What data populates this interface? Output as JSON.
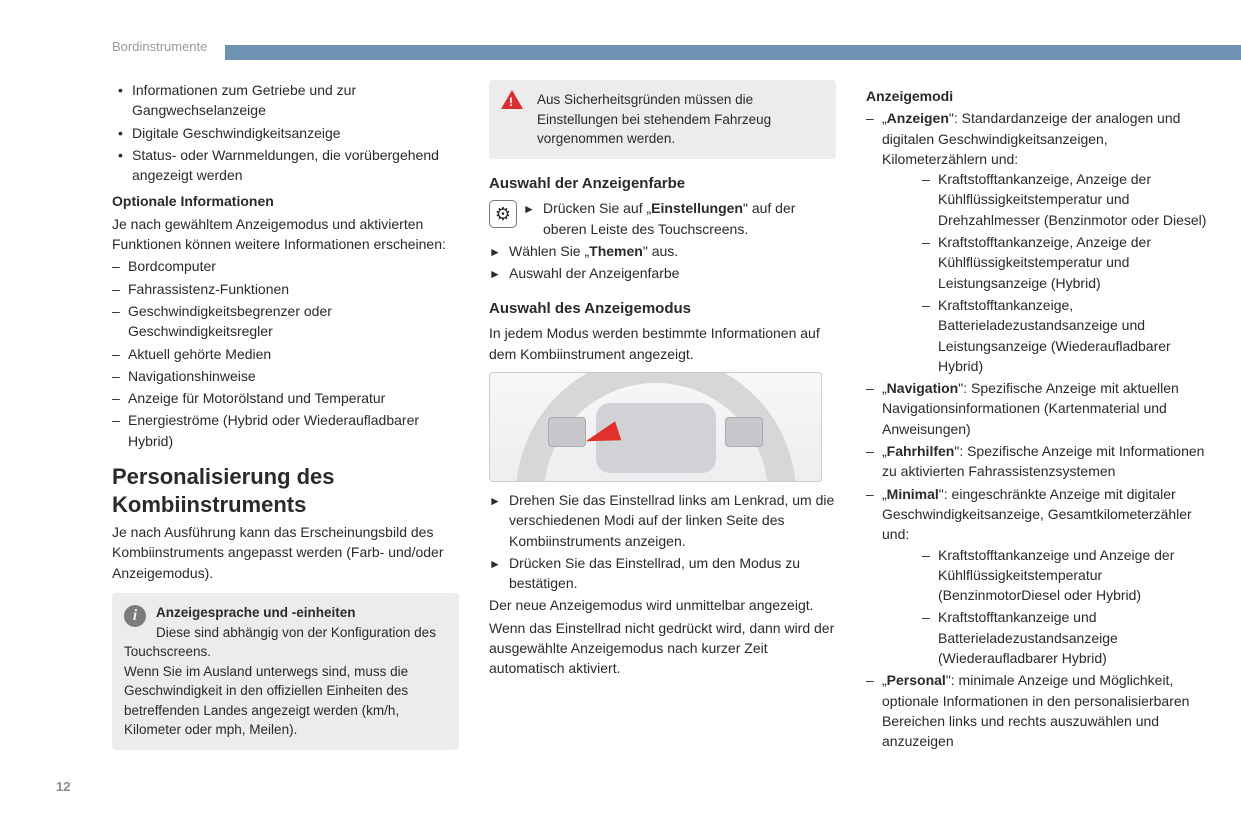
{
  "header": {
    "section": "Bordinstrumente"
  },
  "pageNumber": "12",
  "col1": {
    "topBullets": [
      "Informationen zum Getriebe und zur Gangwechselanzeige",
      "Digitale Geschwindigkeitsanzeige",
      "Status- oder Warnmeldungen, die vorübergehend angezeigt werden"
    ],
    "optHeading": "Optionale Informationen",
    "optIntro": "Je nach gewähltem Anzeigemodus und aktivierten Funktionen können weitere Informationen erscheinen:",
    "optList": [
      "Bordcomputer",
      "Fahrassistenz-Funktionen",
      "Geschwindigkeitsbegrenzer oder Geschwindigkeitsregler",
      "Aktuell gehörte Medien",
      "Navigationshinweise",
      "Anzeige für Motorölstand und Temperatur",
      "Energieströme (Hybrid oder Wiederaufladbarer Hybrid)"
    ],
    "h1": "Personalisierung des Kombiinstruments",
    "h1Intro": "Je nach Ausführung kann das Erscheinungsbild des Kombiinstruments angepasst werden (Farb- und/oder Anzeigemodus).",
    "noteTitle": "Anzeigesprache und -einheiten",
    "noteLine1": "Diese sind abhängig von der Konfiguration des Touchscreens.",
    "noteLine2": "Wenn Sie im Ausland unterwegs sind, muss die Geschwindigkeit in den offiziellen Einheiten des betreffenden Landes angezeigt werden (km/h, Kilometer oder mph, Meilen)."
  },
  "col2": {
    "warn": "Aus Sicherheitsgründen müssen die Einstellungen bei stehendem Fahrzeug vorgenommen werden.",
    "h2a": "Auswahl der Anzeigenfarbe",
    "step1_pre": "Drücken Sie auf „",
    "step1_bold": "Einstellungen",
    "step1_post": "\" auf der oberen Leiste des Touchscreens.",
    "step2_pre": "Wählen Sie „",
    "step2_bold": "Themen",
    "step2_post": "\" aus.",
    "step3": "Auswahl der Anzeigenfarbe",
    "h2b": "Auswahl des Anzeigemodus",
    "introB": "In jedem Modus werden bestimmte Informationen auf dem Kombiinstrument angezeigt.",
    "afterImg1": "Drehen Sie das Einstellrad links am Lenkrad, um die verschiedenen Modi auf der linken Seite des Kombiinstruments anzeigen.",
    "afterImg2": "Drücken Sie das Einstellrad, um den Modus zu bestätigen.",
    "p1": "Der neue Anzeigemodus wird unmittelbar angezeigt.",
    "p2": "Wenn das Einstellrad nicht gedrückt wird, dann wird der ausgewählte Anzeigemodus nach kurzer Zeit automatisch aktiviert."
  },
  "col3": {
    "modesHeading": "Anzeigemodi",
    "mode1_pre": "„",
    "mode1_bold": "Anzeigen",
    "mode1_post": "\": Standardanzeige der analogen und digitalen Geschwindigkeitsanzeigen, Kilometerzählern und:",
    "mode1_sub": [
      "Kraftstofftankanzeige, Anzeige der Kühlflüssigkeitstemperatur und Drehzahlmesser (Benzinmotor oder Diesel)",
      "Kraftstofftankanzeige, Anzeige der Kühlflüssigkeitstemperatur und Leistungsanzeige (Hybrid)",
      "Kraftstofftankanzeige, Batterieladezustandsanzeige und Leistungsanzeige (Wiederaufladbarer Hybrid)"
    ],
    "mode2_pre": "„",
    "mode2_bold": "Navigation",
    "mode2_post": "\": Spezifische Anzeige mit aktuellen Navigationsinformationen (Kartenmaterial und Anweisungen)",
    "mode3_pre": "„",
    "mode3_bold": "Fahrhilfen",
    "mode3_post": "\": Spezifische Anzeige mit Informationen zu aktivierten Fahrassistenzsystemen",
    "mode4_pre": "„",
    "mode4_bold": "Minimal",
    "mode4_post": "\": eingeschränkte Anzeige mit digitaler Geschwindigkeitsanzeige, Gesamtkilometerzähler und:",
    "mode4_sub": [
      "Kraftstofftankanzeige und Anzeige der Kühlflüssigkeitstemperatur (BenzinmotorDiesel oder Hybrid)",
      "Kraftstofftankanzeige und Batterieladezustandsanzeige (Wiederaufladbarer Hybrid)"
    ],
    "mode5_pre": "„",
    "mode5_bold": "Personal",
    "mode5_post": "\": minimale Anzeige und Möglichkeit, optionale Informationen in den personalisierbaren Bereichen links und rechts auszuwählen und anzuzeigen"
  }
}
